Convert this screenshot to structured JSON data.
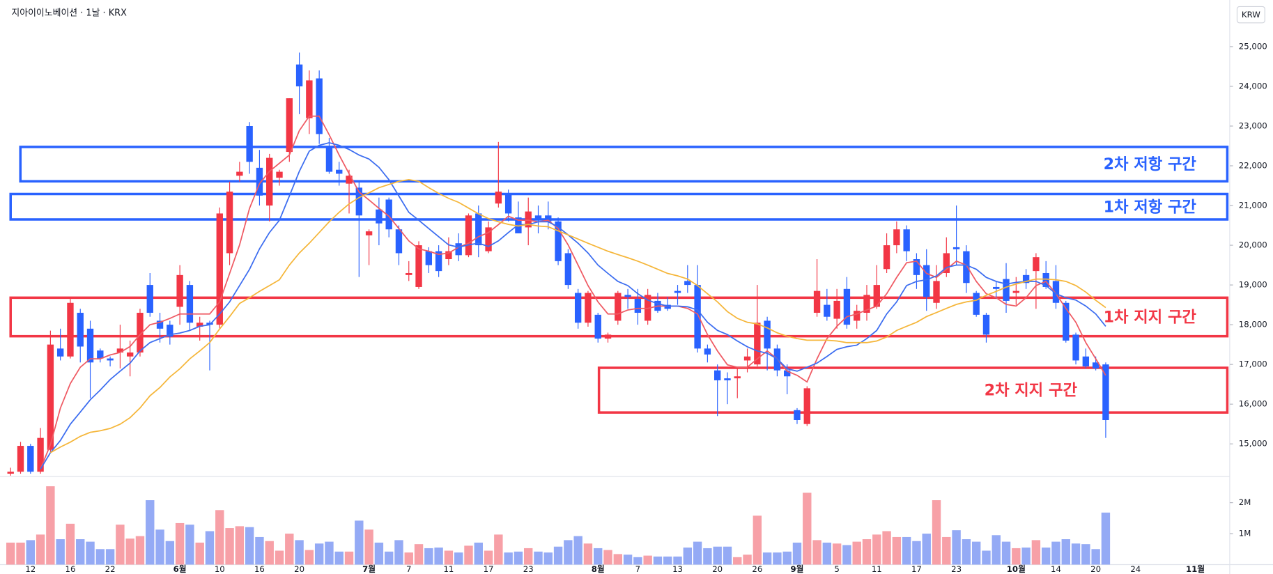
{
  "chart_data": {
    "type": "candlestick",
    "title": "지아이이노베이션 · 1날 · KRX",
    "currency": "KRW",
    "up_color": "#f23645",
    "down_color": "#2962ff",
    "volume_up_color": "#f7a0a7",
    "volume_down_color": "#94aaf5",
    "grid": false,
    "categories": [
      null,
      null,
      "12",
      null,
      null,
      null,
      "16",
      null,
      null,
      null,
      "22",
      null,
      null,
      null,
      null,
      null,
      null,
      "6월",
      null,
      null,
      null,
      "10",
      null,
      null,
      null,
      "16",
      null,
      null,
      null,
      "20",
      null,
      null,
      null,
      null,
      null,
      null,
      "7월",
      null,
      null,
      null,
      "7",
      null,
      null,
      null,
      "11",
      null,
      null,
      null,
      "17",
      null,
      null,
      null,
      "23",
      null,
      null,
      null,
      null,
      null,
      null,
      "8월",
      null,
      null,
      null,
      "7",
      null,
      null,
      null,
      "13",
      null,
      null,
      null,
      "20",
      null,
      null,
      null,
      "26",
      null,
      null,
      null,
      "9월",
      null,
      null,
      null,
      "5",
      null,
      null,
      null,
      "11",
      null,
      null,
      null,
      "17",
      null,
      null,
      null,
      "23",
      null,
      null,
      null,
      null,
      null,
      "10월",
      null,
      null,
      null,
      "14",
      null,
      null,
      null,
      "20",
      null,
      null,
      null,
      "24",
      null,
      null,
      null,
      null,
      null,
      "11월"
    ],
    "open": [
      14250,
      14300,
      14950,
      14300,
      14850,
      17400,
      17200,
      18300,
      17900,
      17350,
      17150,
      17300,
      17200,
      17300,
      19000,
      18100,
      18000,
      18450,
      19000,
      17950,
      18050,
      18000,
      19800,
      21750,
      23000,
      21950,
      21000,
      21700,
      22350,
      24550,
      23200,
      24200,
      22450,
      21900,
      21550,
      21450,
      20250,
      20900,
      21150,
      20400,
      19250,
      18950,
      19850,
      19850,
      19650,
      20050,
      19750,
      20800,
      19850,
      21050,
      21300,
      20700,
      20450,
      20750,
      20750,
      20600,
      19800,
      18800,
      18050,
      18250,
      17650,
      18100,
      18750,
      18650,
      18100,
      18600,
      18500,
      18850,
      19100,
      19000,
      17400,
      16850,
      16650,
      16650,
      17100,
      17000,
      18100,
      17400,
      16850,
      15850,
      15500,
      18300,
      18500,
      18150,
      18900,
      18100,
      18300,
      18450,
      19400,
      20000,
      20400,
      19650,
      19500,
      18550,
      19300,
      19950,
      19850,
      18800,
      18250,
      18950,
      19150,
      18800,
      19250,
      19350,
      19300,
      19100,
      18550,
      17750,
      17200,
      17050,
      17000,
      null,
      null,
      null,
      null,
      null,
      null,
      null,
      null,
      null
    ],
    "high": [
      14400,
      15050,
      15000,
      15400,
      17850,
      17900,
      18650,
      18400,
      18100,
      17400,
      17200,
      18000,
      17600,
      18400,
      19300,
      18300,
      18100,
      19500,
      19100,
      18200,
      18100,
      20950,
      21600,
      22100,
      23100,
      22400,
      22300,
      21900,
      23700,
      24850,
      24400,
      24400,
      22700,
      22100,
      21900,
      21600,
      20400,
      21200,
      21200,
      20500,
      19600,
      20100,
      19950,
      20000,
      20200,
      20300,
      20800,
      21000,
      20600,
      22600,
      21400,
      21100,
      21200,
      21000,
      21100,
      20700,
      19900,
      18900,
      18850,
      18300,
      17800,
      18850,
      18900,
      18900,
      18900,
      18800,
      18700,
      19000,
      19500,
      19500,
      17500,
      17000,
      16800,
      16900,
      17400,
      19000,
      18200,
      17500,
      17000,
      15900,
      16450,
      19650,
      18900,
      18900,
      19200,
      18500,
      19000,
      19500,
      20300,
      20600,
      20500,
      19800,
      19900,
      19500,
      20200,
      21000,
      20000,
      18850,
      18300,
      19100,
      19550,
      19200,
      19400,
      19800,
      19600,
      19500,
      18600,
      17800,
      17400,
      17200,
      17050,
      null,
      null,
      null,
      null,
      null,
      null,
      null,
      null,
      null
    ],
    "low": [
      14200,
      14250,
      14250,
      14250,
      14800,
      17100,
      17150,
      17050,
      16150,
      17050,
      16950,
      16900,
      16700,
      17200,
      18200,
      17550,
      17500,
      18000,
      17850,
      17600,
      16850,
      17900,
      19500,
      21600,
      21800,
      21000,
      20600,
      21500,
      22100,
      23300,
      22800,
      22550,
      21800,
      21500,
      20800,
      19200,
      19500,
      20000,
      20200,
      19500,
      19100,
      18900,
      19300,
      19200,
      19500,
      19600,
      19700,
      19700,
      19800,
      20950,
      20600,
      20300,
      20000,
      20300,
      20400,
      19500,
      18900,
      17900,
      17950,
      17550,
      17550,
      18000,
      18400,
      18000,
      18000,
      18300,
      18350,
      18500,
      18800,
      17300,
      17050,
      15700,
      16000,
      16150,
      16800,
      16950,
      16850,
      16700,
      16250,
      15500,
      15450,
      18200,
      18100,
      17900,
      17900,
      17900,
      18100,
      18400,
      19300,
      19800,
      19600,
      18900,
      18350,
      18400,
      19200,
      19500,
      18800,
      18200,
      17550,
      18650,
      18300,
      18500,
      18900,
      18400,
      18900,
      18400,
      17550,
      17000,
      16900,
      16850,
      15150,
      null,
      null,
      null,
      null,
      null,
      null,
      null,
      null,
      null
    ],
    "close": [
      14300,
      14950,
      14300,
      15150,
      17500,
      17200,
      18550,
      17450,
      17050,
      17150,
      17100,
      17400,
      17300,
      18300,
      18300,
      17900,
      17700,
      19250,
      18050,
      18050,
      18000,
      20800,
      21350,
      21850,
      22100,
      21250,
      22200,
      21850,
      23700,
      24000,
      24150,
      22800,
      21850,
      21800,
      21750,
      20750,
      20350,
      20550,
      20400,
      19800,
      19300,
      20000,
      19500,
      19350,
      19850,
      19750,
      20750,
      20000,
      20450,
      21350,
      20800,
      20300,
      20850,
      20650,
      20600,
      19600,
      19000,
      18050,
      18800,
      17650,
      17750,
      18800,
      18700,
      18300,
      18750,
      18350,
      18400,
      18800,
      19000,
      17400,
      17250,
      16600,
      16600,
      16700,
      17200,
      18050,
      17400,
      16850,
      16700,
      15600,
      16400,
      18850,
      18200,
      18600,
      18000,
      18350,
      18750,
      19000,
      20000,
      20400,
      19850,
      19250,
      18700,
      19100,
      19800,
      19900,
      19050,
      18250,
      17750,
      18900,
      18600,
      18850,
      19050,
      19700,
      18950,
      18550,
      17600,
      17100,
      16950,
      16900,
      15600,
      null,
      null,
      null,
      null,
      null,
      null,
      null,
      null,
      null
    ],
    "volume": [
      710000,
      710000,
      790000,
      970000,
      2530000,
      820000,
      1320000,
      820000,
      740000,
      500000,
      500000,
      1290000,
      840000,
      920000,
      2080000,
      1130000,
      760000,
      1340000,
      1290000,
      710000,
      1080000,
      1760000,
      1180000,
      1240000,
      1210000,
      890000,
      760000,
      450000,
      1000000,
      790000,
      470000,
      680000,
      740000,
      420000,
      420000,
      1420000,
      1130000,
      710000,
      420000,
      790000,
      390000,
      660000,
      530000,
      550000,
      450000,
      390000,
      610000,
      710000,
      450000,
      970000,
      390000,
      420000,
      530000,
      420000,
      390000,
      580000,
      790000,
      920000,
      680000,
      530000,
      470000,
      340000,
      320000,
      240000,
      290000,
      260000,
      260000,
      260000,
      550000,
      740000,
      530000,
      580000,
      580000,
      240000,
      320000,
      1580000,
      390000,
      390000,
      420000,
      710000,
      2320000,
      790000,
      710000,
      680000,
      630000,
      740000,
      820000,
      970000,
      1080000,
      890000,
      890000,
      760000,
      1000000,
      2080000,
      890000,
      1110000,
      820000,
      740000,
      450000,
      950000,
      740000,
      530000,
      550000,
      790000,
      550000,
      740000,
      820000,
      680000,
      660000,
      500000,
      1680000,
      null,
      null,
      null,
      null,
      null,
      null,
      null,
      null,
      null
    ],
    "lines": [
      {
        "color": "#ef5a63",
        "values": [
          null,
          null,
          null,
          14370,
          14980,
          15900,
          16520,
          16930,
          17140,
          17140,
          17240,
          17300,
          17450,
          17750,
          18000,
          18060,
          18160,
          18270,
          18270,
          18270,
          18270,
          18575,
          19290,
          20010,
          20930,
          21550,
          21860,
          22065,
          22270,
          22885,
          23250,
          23250,
          22780,
          22270,
          21800,
          21340,
          21140,
          20930,
          20730,
          20420,
          20110,
          19910,
          19850,
          19770,
          19805,
          19950,
          20050,
          20215,
          20320,
          20520,
          20730,
          20630,
          20630,
          20590,
          20630,
          20420,
          20010,
          19500,
          18985,
          18575,
          18270,
          18270,
          18370,
          18410,
          18410,
          18470,
          18470,
          18470,
          18410,
          18270,
          17750,
          17340,
          16990,
          16930,
          16930,
          17140,
          17340,
          17140,
          16830,
          16725,
          16560,
          17140,
          17650,
          17960,
          18200,
          18270,
          18370,
          18470,
          18780,
          19190,
          19560,
          19600,
          19290,
          19190,
          19395,
          19600,
          19500,
          19090,
          18780,
          18680,
          18510,
          18470,
          18680,
          18985,
          19090,
          18780,
          18410,
          18060,
          17550,
          17140,
          16725,
          null,
          null,
          null,
          null,
          null,
          null,
          null,
          null,
          null
        ]
      },
      {
        "color": "#3c6df0",
        "values": [
          null,
          null,
          null,
          14365,
          14780,
          15085,
          15495,
          15800,
          16110,
          16355,
          16620,
          16830,
          17035,
          17340,
          17550,
          17650,
          17750,
          17790,
          17855,
          17960,
          18000,
          18270,
          18575,
          18985,
          19395,
          19910,
          20320,
          20630,
          21240,
          21860,
          22370,
          22515,
          22580,
          22515,
          22410,
          22270,
          22170,
          21960,
          21650,
          21240,
          20830,
          20630,
          20420,
          20215,
          20010,
          19950,
          20010,
          20050,
          19970,
          20110,
          20320,
          20520,
          20520,
          20590,
          20590,
          20460,
          20260,
          20050,
          19805,
          19500,
          19290,
          19090,
          18985,
          18780,
          18620,
          18530,
          18470,
          18470,
          18450,
          18370,
          18060,
          17855,
          17750,
          17590,
          17445,
          17340,
          17280,
          17140,
          16890,
          16830,
          16930,
          17035,
          17200,
          17380,
          17445,
          17485,
          17650,
          17855,
          18270,
          18575,
          18985,
          19090,
          19130,
          19230,
          19440,
          19500,
          19500,
          19395,
          19190,
          19090,
          19025,
          19065,
          19090,
          19090,
          18985,
          18780,
          18680,
          18620,
          18470,
          18270,
          17960,
          null,
          null,
          null,
          null,
          null,
          null,
          null,
          null,
          null
        ]
      },
      {
        "color": "#f5b63a",
        "values": [
          null,
          null,
          null,
          null,
          14780,
          14920,
          15045,
          15190,
          15290,
          15330,
          15390,
          15495,
          15660,
          15905,
          16210,
          16420,
          16685,
          16890,
          17140,
          17340,
          17550,
          17895,
          18205,
          18535,
          18680,
          18840,
          18985,
          19130,
          19500,
          19805,
          20050,
          20320,
          20590,
          20830,
          21040,
          21200,
          21320,
          21450,
          21530,
          21610,
          21650,
          21610,
          21450,
          21305,
          21180,
          21080,
          20935,
          20790,
          20670,
          20590,
          20525,
          20485,
          20525,
          20485,
          20465,
          20360,
          20260,
          20155,
          20050,
          19950,
          19850,
          19765,
          19685,
          19600,
          19500,
          19395,
          19290,
          19230,
          19150,
          18985,
          18780,
          18575,
          18330,
          18160,
          18060,
          18020,
          17920,
          17795,
          17710,
          17650,
          17610,
          17610,
          17610,
          17590,
          17550,
          17550,
          17550,
          17590,
          17690,
          17855,
          17960,
          18060,
          18205,
          18305,
          18410,
          18510,
          18575,
          18615,
          18740,
          18840,
          18945,
          19025,
          19090,
          19150,
          19150,
          19130,
          19090,
          18985,
          18820,
          18615,
          18430,
          null,
          null,
          null,
          null,
          null,
          null,
          null,
          null,
          null
        ]
      }
    ],
    "ylim": [
      14200,
      26070
    ],
    "yticks": [
      {
        "value": 15000,
        "label": "15,000"
      },
      {
        "value": 16000,
        "label": "16,000"
      },
      {
        "value": 17000,
        "label": "17,000"
      },
      {
        "value": 18000,
        "label": "18,000"
      },
      {
        "value": 19000,
        "label": "19,000"
      },
      {
        "value": 20000,
        "label": "20,000"
      },
      {
        "value": 21000,
        "label": "21,000"
      },
      {
        "value": 22000,
        "label": "22,000"
      },
      {
        "value": 23000,
        "label": "23,000"
      },
      {
        "value": 24000,
        "label": "24,000"
      },
      {
        "value": 25000,
        "label": "25,000"
      }
    ],
    "volume_ylim": [
      0,
      2820000
    ],
    "volume_yticks": [
      {
        "value": 1000000,
        "label": "1M"
      },
      {
        "value": 2000000,
        "label": "2M"
      }
    ],
    "zones": [
      {
        "label": "2차 저항 구간",
        "color": "#2962ff",
        "range": [
          21610,
          22475
        ]
      },
      {
        "label": "1차 저항 구간",
        "color": "#2962ff",
        "range": [
          20650,
          21290
        ]
      },
      {
        "label": "1차 지지 구간",
        "color": "#f23645",
        "range": [
          17710,
          18680
        ]
      },
      {
        "label": "2차 지지 구간",
        "color": "#f23645",
        "range": [
          15790,
          16915
        ]
      }
    ]
  }
}
